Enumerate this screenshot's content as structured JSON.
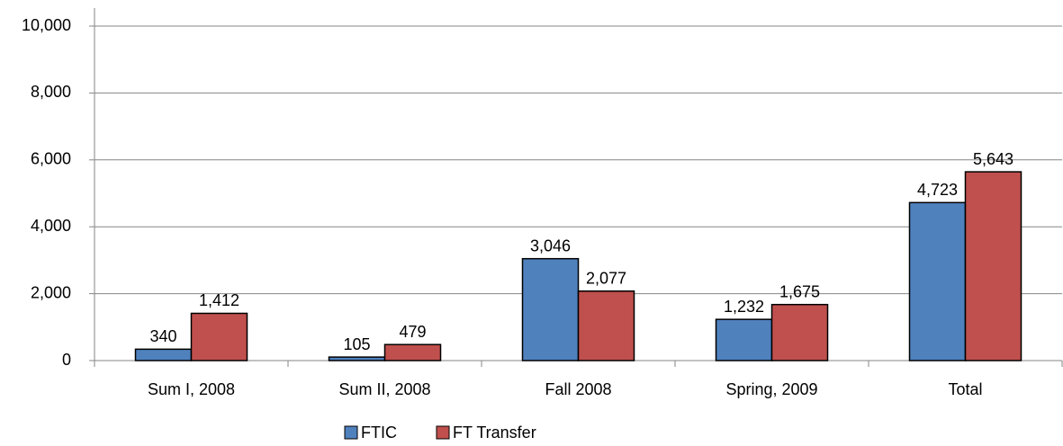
{
  "chart_data": {
    "type": "bar",
    "categories": [
      "Sum I, 2008",
      "Sum II, 2008",
      "Fall 2008",
      "Spring, 2009",
      "Total"
    ],
    "series": [
      {
        "name": "FTIC",
        "color": "#4f81bd",
        "values": [
          340,
          105,
          3046,
          1232,
          4723
        ],
        "value_labels": [
          "340",
          "105",
          "3,046",
          "1,232",
          "4,723"
        ]
      },
      {
        "name": "FT Transfer",
        "color": "#c0504d",
        "values": [
          1412,
          479,
          2077,
          1675,
          5643
        ],
        "value_labels": [
          "1,412",
          "479",
          "2,077",
          "1,675",
          "5,643"
        ]
      }
    ],
    "ylim": [
      0,
      10000
    ],
    "yticks": [
      0,
      {
        "value": 2000,
        "label": "2,000"
      },
      {
        "value": 4000,
        "label": "4,000"
      },
      {
        "value": 6000,
        "label": "6,000"
      },
      {
        "value": 8000,
        "label": "8,000"
      },
      {
        "value": 10000,
        "label": "10,000"
      }
    ],
    "grid": true,
    "legend": "bottom"
  }
}
